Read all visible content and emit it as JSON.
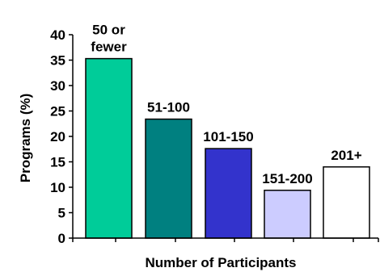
{
  "chart_data": {
    "type": "bar",
    "categories": [
      "50 or fewer",
      "51-100",
      "101-150",
      "151-200",
      "201+"
    ],
    "category_label_lines": [
      [
        "50 or",
        "fewer"
      ],
      [
        "51-100"
      ],
      [
        "101-150"
      ],
      [
        "151-200"
      ],
      [
        "201+"
      ]
    ],
    "values": [
      35.3,
      23.4,
      17.6,
      9.4,
      14.0
    ],
    "bar_colors": [
      "#00CC99",
      "#008080",
      "#3333CC",
      "#CCCCFF",
      "#FFFFFF"
    ],
    "title": "",
    "xlabel": "Number of Participants",
    "ylabel": "Programs (%)",
    "ylim": [
      0,
      40
    ],
    "yticks": [
      0,
      5,
      10,
      15,
      20,
      25,
      30,
      35,
      40
    ],
    "grid": false,
    "legend": "none"
  }
}
